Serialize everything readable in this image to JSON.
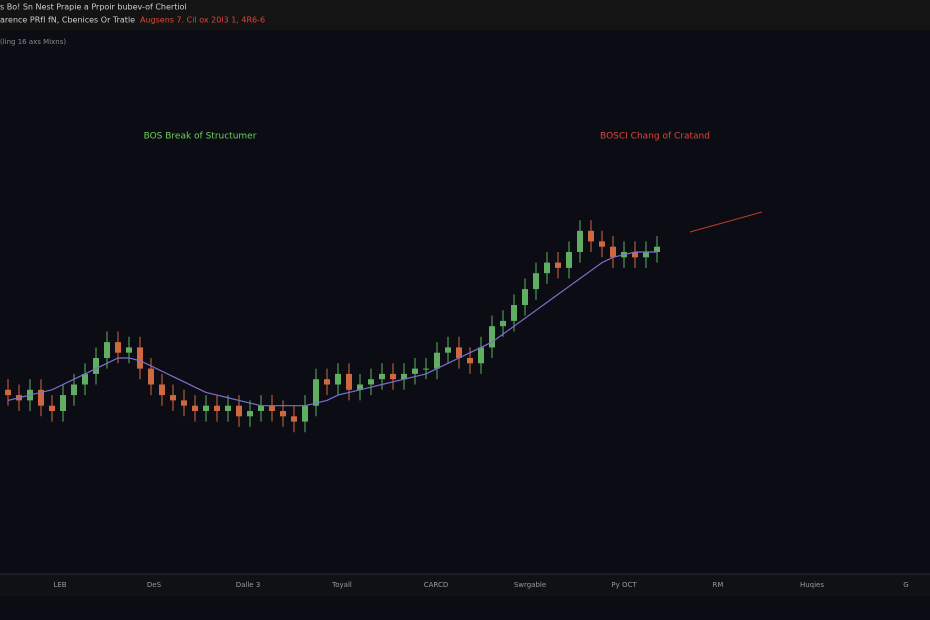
{
  "chart_data": {
    "type": "candlestick",
    "header": [
      "s Bo! Sn Nest Prapie a Prpoir bubev-of Chertiol",
      "arence PRfI fN, Cbenices Or Tratle"
    ],
    "header_highlight": "Augsens 7. Cil ox 20l3 1, 4R6-6",
    "subtitle": "(ling 16 axs Mixns)",
    "annotations": [
      {
        "text": "BOS Break of Structumer",
        "color": "#6fd05a"
      },
      {
        "text": "BOSCI Chang of Cratand",
        "color": "#e0443a"
      }
    ],
    "x_labels": [
      "LEB",
      "DeS",
      "Dalle 3",
      "Toyall",
      "CARCD",
      "Swrgable",
      "Py OCT",
      "RM",
      "Huqies",
      "G"
    ],
    "ylim": [
      0,
      100
    ],
    "up_color": "#5fae62",
    "down_color": "#d0683f",
    "open": [
      34,
      33,
      32,
      34,
      31,
      30,
      33,
      35,
      37,
      40,
      43,
      41,
      42,
      38,
      35,
      33,
      32,
      31,
      30,
      31,
      30,
      31,
      29,
      30,
      31,
      30,
      29,
      28,
      31,
      36,
      35,
      37,
      34,
      35,
      36,
      37,
      36,
      37,
      38,
      38,
      41,
      42,
      40,
      39,
      42,
      46,
      47,
      50,
      53,
      56,
      58,
      57,
      60,
      64,
      62,
      61,
      59,
      60,
      59,
      60
    ],
    "high": [
      36,
      35,
      36,
      36,
      33,
      35,
      37,
      39,
      42,
      45,
      45,
      44,
      44,
      40,
      37,
      35,
      34,
      33,
      33,
      33,
      33,
      33,
      32,
      33,
      33,
      32,
      31,
      33,
      38,
      38,
      39,
      39,
      37,
      38,
      39,
      39,
      39,
      40,
      40,
      43,
      44,
      44,
      42,
      44,
      48,
      49,
      52,
      55,
      58,
      60,
      60,
      62,
      66,
      66,
      64,
      63,
      62,
      62,
      62,
      63
    ],
    "low": [
      31,
      30,
      30,
      29,
      28,
      28,
      31,
      33,
      35,
      38,
      39,
      39,
      36,
      33,
      31,
      30,
      29,
      28,
      28,
      28,
      28,
      27,
      27,
      28,
      28,
      27,
      26,
      26,
      29,
      33,
      33,
      32,
      32,
      33,
      34,
      34,
      34,
      35,
      36,
      36,
      39,
      38,
      37,
      37,
      40,
      44,
      45,
      48,
      51,
      54,
      55,
      55,
      58,
      60,
      59,
      57,
      57,
      57,
      57,
      58
    ],
    "close": [
      33,
      32,
      34,
      31,
      30,
      33,
      35,
      37,
      40,
      43,
      41,
      42,
      38,
      35,
      33,
      32,
      31,
      30,
      31,
      30,
      31,
      29,
      30,
      31,
      30,
      29,
      28,
      31,
      36,
      35,
      37,
      34,
      35,
      36,
      37,
      36,
      37,
      38,
      38,
      41,
      42,
      40,
      39,
      42,
      46,
      47,
      50,
      53,
      56,
      58,
      57,
      60,
      64,
      62,
      61,
      59,
      60,
      59,
      60,
      61
    ],
    "ma": {
      "color": "#7b6fd0",
      "values": [
        32,
        32.5,
        33,
        33.5,
        34,
        35,
        36,
        37,
        38,
        39,
        40,
        40,
        39.5,
        38.5,
        37.5,
        36.5,
        35.5,
        34.5,
        33.5,
        33,
        32.5,
        32,
        31.5,
        31,
        31,
        31,
        31,
        31,
        31.5,
        32,
        33,
        33.5,
        34,
        34.5,
        35,
        35.5,
        36,
        36.5,
        37,
        38,
        39,
        40,
        41,
        42,
        43,
        44.5,
        46,
        47.5,
        49,
        50.5,
        52,
        53.5,
        55,
        56.5,
        58,
        59,
        59.5,
        60,
        60,
        60
      ]
    }
  }
}
